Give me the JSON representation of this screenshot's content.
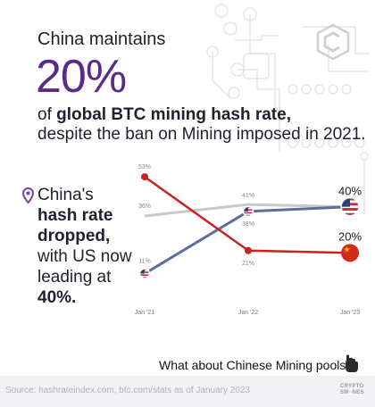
{
  "header": {
    "intro": "China maintains",
    "big_pct": "20%",
    "line1_pre": "of ",
    "line1_bold": "global BTC mining hash rate,",
    "line2": "despite the ban on Mining imposed in 2021."
  },
  "sidebar": {
    "lines": [
      "China's",
      "hash rate",
      "dropped,",
      "with US now",
      "leading at",
      "40%."
    ]
  },
  "question": "What about Chinese Mining pools?",
  "footer": {
    "source": "Source: hashrateindex.com, btc.com/stats as of January 2023",
    "brand_line1": "CRYPTO",
    "brand_line2": "SM∙∙NES"
  },
  "colors": {
    "china": "#cc2020",
    "us": "#5a6f9e",
    "other": "#c8c8c8",
    "accent": "#5b2a86"
  },
  "chart_data": {
    "type": "line",
    "categories": [
      "Jan '21",
      "Jan '22",
      "Jan '23"
    ],
    "series": [
      {
        "key": "china",
        "values": [
          53,
          21,
          20
        ],
        "labels": [
          "53%",
          "21%",
          "20%"
        ]
      },
      {
        "key": "us",
        "values": [
          11,
          38,
          40
        ],
        "labels": [
          "11%",
          "38%",
          "40%"
        ]
      },
      {
        "key": "other",
        "values": [
          36,
          41,
          40
        ],
        "labels": [
          "36%",
          "41%",
          ""
        ]
      }
    ],
    "ylim": [
      0,
      60
    ],
    "grid": false
  }
}
